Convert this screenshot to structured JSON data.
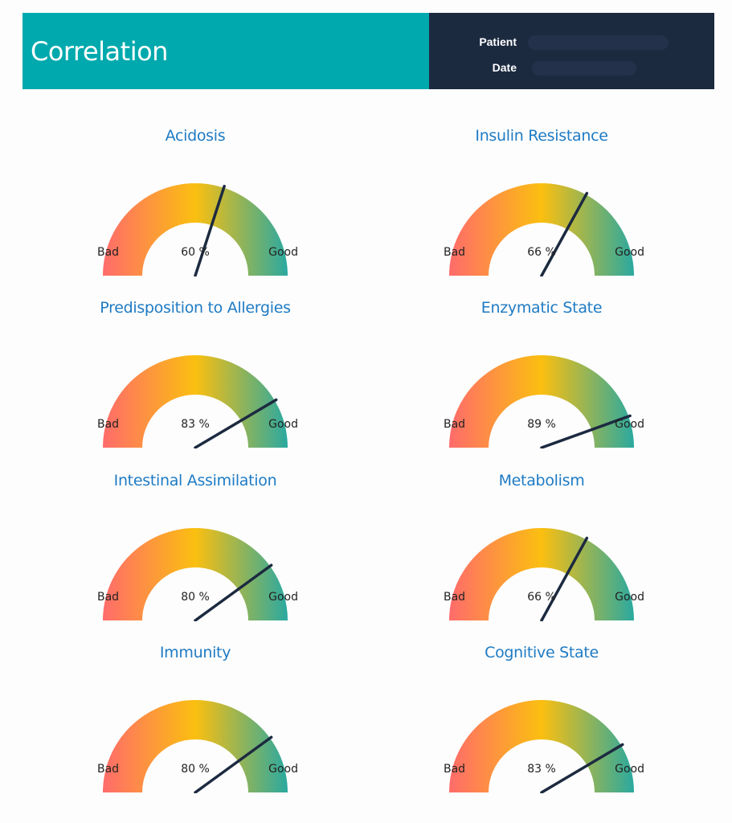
{
  "header": {
    "title": "Correlation",
    "patient_label": "Patient",
    "date_label": "Date"
  },
  "colors": {
    "teal": "#00a9ad",
    "navy": "#1c2a40",
    "title_blue": "#1e7bc4",
    "gauge_bad": "#ff6b6b",
    "gauge_mid": "#fbbf10",
    "gauge_good": "#2aa9a0",
    "needle": "#1c2a40"
  },
  "gauges": [
    {
      "title": "Acidosis",
      "value": 60,
      "value_text": "60 %",
      "bad_label": "Bad",
      "good_label": "Good"
    },
    {
      "title": "Insulin Resistance",
      "value": 66,
      "value_text": "66 %",
      "bad_label": "Bad",
      "good_label": "Good"
    },
    {
      "title": "Predisposition to Allergies",
      "value": 83,
      "value_text": "83 %",
      "bad_label": "Bad",
      "good_label": "Good"
    },
    {
      "title": "Enzymatic State",
      "value": 89,
      "value_text": "89 %",
      "bad_label": "Bad",
      "good_label": "Good"
    },
    {
      "title": "Intestinal Assimilation",
      "value": 80,
      "value_text": "80 %",
      "bad_label": "Bad",
      "good_label": "Good"
    },
    {
      "title": "Metabolism",
      "value": 66,
      "value_text": "66 %",
      "bad_label": "Bad",
      "good_label": "Good"
    },
    {
      "title": "Immunity",
      "value": 80,
      "value_text": "80 %",
      "bad_label": "Bad",
      "good_label": "Good"
    },
    {
      "title": "Cognitive State",
      "value": 83,
      "value_text": "83 %",
      "bad_label": "Bad",
      "good_label": "Good"
    }
  ]
}
